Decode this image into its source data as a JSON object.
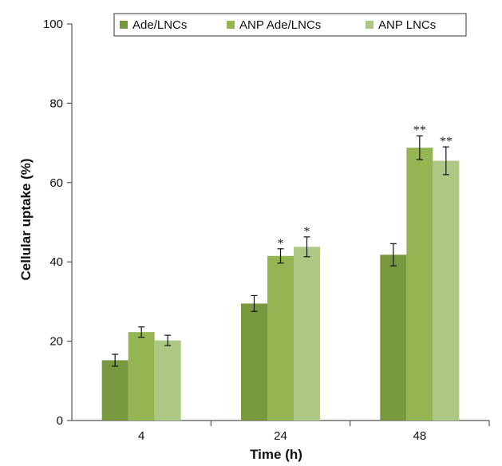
{
  "chart_data": {
    "type": "bar",
    "title": "",
    "xlabel": "Time (h)",
    "ylabel": "Cellular uptake (%)",
    "ylim": [
      0,
      100
    ],
    "yticks": [
      0,
      20,
      40,
      60,
      80,
      100
    ],
    "categories": [
      "4",
      "24",
      "48"
    ],
    "series": [
      {
        "name": "Ade/LNCs",
        "color": "#77983f",
        "values": [
          15.2,
          29.5,
          41.8
        ],
        "errors": [
          1.5,
          2.0,
          2.8
        ]
      },
      {
        "name": "ANP Ade/LNCs",
        "color": "#95b452",
        "values": [
          22.3,
          41.5,
          68.8
        ],
        "errors": [
          1.3,
          1.8,
          3.0
        ]
      },
      {
        "name": "ANP LNCs",
        "color": "#adc784",
        "values": [
          20.2,
          43.8,
          65.5
        ],
        "errors": [
          1.3,
          2.5,
          3.5
        ]
      }
    ],
    "annotations": [
      {
        "series": 1,
        "category": 1,
        "text": "*"
      },
      {
        "series": 2,
        "category": 1,
        "text": "*"
      },
      {
        "series": 1,
        "category": 2,
        "text": "**"
      },
      {
        "series": 2,
        "category": 2,
        "text": "**"
      }
    ],
    "legend_position": "top-right",
    "grid": false
  }
}
